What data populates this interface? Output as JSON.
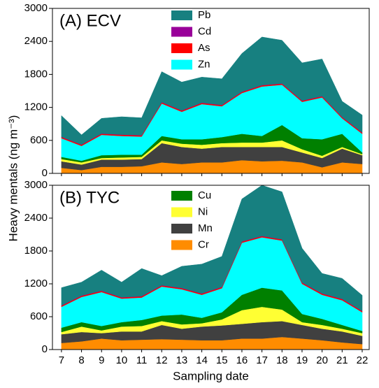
{
  "y_label": "Heavy mentals (ng m⁻³)",
  "chart_data": [
    {
      "type": "stacked-area",
      "title": "(A) ECV",
      "x": [
        7,
        8,
        9,
        10,
        11,
        12,
        13,
        14,
        15,
        16,
        17,
        18,
        19,
        20,
        21,
        22
      ],
      "xlim": [
        6.55,
        22.35
      ],
      "ylim": [
        0,
        3000
      ],
      "yticks": [
        0,
        600,
        1200,
        1800,
        2400,
        3000
      ],
      "series": [
        {
          "name": "Cr",
          "color": "#ff8c00",
          "values": [
            100,
            60,
            120,
            120,
            130,
            200,
            170,
            200,
            200,
            240,
            220,
            230,
            200,
            110,
            200,
            170
          ]
        },
        {
          "name": "Mn",
          "color": "#404040",
          "values": [
            120,
            100,
            130,
            130,
            130,
            350,
            310,
            250,
            280,
            240,
            260,
            250,
            180,
            170,
            250,
            160
          ]
        },
        {
          "name": "Ni",
          "color": "#ffff33",
          "values": [
            40,
            40,
            30,
            40,
            40,
            50,
            60,
            70,
            70,
            80,
            80,
            120,
            60,
            40,
            30,
            20
          ]
        },
        {
          "name": "Cu",
          "color": "#008000",
          "values": [
            40,
            30,
            50,
            50,
            40,
            80,
            80,
            100,
            110,
            160,
            120,
            280,
            200,
            300,
            240,
            30
          ]
        },
        {
          "name": "Zn",
          "color": "#00ffff",
          "values": [
            340,
            270,
            370,
            340,
            330,
            590,
            500,
            640,
            560,
            740,
            900,
            730,
            660,
            760,
            280,
            340
          ]
        },
        {
          "name": "As",
          "color": "#ff0000",
          "values": [
            20,
            20,
            20,
            20,
            20,
            20,
            20,
            20,
            20,
            20,
            20,
            20,
            20,
            20,
            20,
            20
          ]
        },
        {
          "name": "Cd",
          "color": "#990099",
          "values": [
            5,
            5,
            5,
            5,
            5,
            5,
            5,
            5,
            5,
            5,
            5,
            5,
            5,
            5,
            5,
            5
          ]
        },
        {
          "name": "Pb",
          "color": "#178080",
          "values": [
            385,
            175,
            275,
            325,
            315,
            555,
            515,
            465,
            475,
            695,
            875,
            785,
            685,
            675,
            285,
            315
          ]
        }
      ]
    },
    {
      "type": "stacked-area",
      "title": "(B) TYC",
      "x_label": "Sampling date",
      "x": [
        7,
        8,
        9,
        10,
        11,
        12,
        13,
        14,
        15,
        16,
        17,
        18,
        19,
        20,
        21,
        22
      ],
      "xlim": [
        6.55,
        22.35
      ],
      "ylim": [
        0,
        3000
      ],
      "yticks": [
        0,
        600,
        1200,
        1800,
        2400,
        3000
      ],
      "series": [
        {
          "name": "Cr",
          "color": "#ff8c00",
          "values": [
            120,
            150,
            200,
            170,
            180,
            190,
            180,
            170,
            170,
            200,
            200,
            230,
            200,
            170,
            130,
            100
          ]
        },
        {
          "name": "Mn",
          "color": "#404040",
          "values": [
            160,
            170,
            100,
            160,
            150,
            260,
            200,
            250,
            270,
            270,
            300,
            290,
            250,
            210,
            200,
            150
          ]
        },
        {
          "name": "Ni",
          "color": "#ffff33",
          "values": [
            40,
            100,
            50,
            90,
            100,
            70,
            80,
            60,
            110,
            250,
            280,
            210,
            50,
            70,
            50,
            50
          ]
        },
        {
          "name": "Cu",
          "color": "#008000",
          "values": [
            80,
            80,
            80,
            80,
            110,
            100,
            180,
            100,
            130,
            280,
            350,
            350,
            150,
            110,
            70,
            40
          ]
        },
        {
          "name": "Zn",
          "color": "#00ffff",
          "values": [
            380,
            460,
            620,
            430,
            410,
            530,
            460,
            420,
            440,
            950,
            920,
            910,
            550,
            440,
            450,
            340
          ]
        },
        {
          "name": "As",
          "color": "#ff0000",
          "values": [
            20,
            20,
            20,
            20,
            20,
            20,
            20,
            20,
            20,
            20,
            20,
            20,
            20,
            20,
            20,
            20
          ]
        },
        {
          "name": "Cd",
          "color": "#990099",
          "values": [
            5,
            5,
            5,
            5,
            5,
            5,
            5,
            5,
            5,
            5,
            5,
            5,
            5,
            5,
            5,
            5
          ]
        },
        {
          "name": "Pb",
          "color": "#178080",
          "values": [
            325,
            245,
            375,
            275,
            505,
            175,
            395,
            535,
            555,
            775,
            925,
            865,
            625,
            365,
            375,
            285
          ]
        }
      ]
    }
  ]
}
